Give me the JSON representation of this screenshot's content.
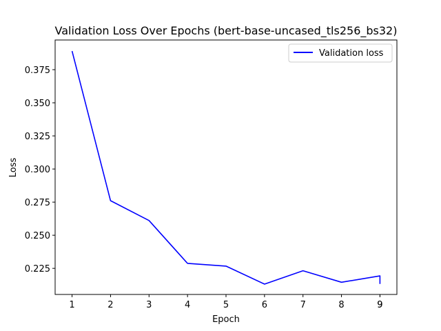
{
  "chart_data": {
    "type": "line",
    "title": "Validation Loss Over Epochs (bert-base-uncased_tls256_bs32)",
    "xlabel": "Epoch",
    "ylabel": "Loss",
    "x_ticks": [
      "1",
      "2",
      "3",
      "4",
      "5",
      "6",
      "7",
      "8",
      "9",
      "9"
    ],
    "y_ticks": [
      "0.225",
      "0.250",
      "0.275",
      "0.300",
      "0.325",
      "0.350",
      "0.375"
    ],
    "xlim": [
      0.56,
      9.44
    ],
    "ylim": [
      0.2053,
      0.3974
    ],
    "grid": false,
    "legend_position": "top-right",
    "series": [
      {
        "name": "Validation loss",
        "color": "#0000ff",
        "x": [
          1,
          2,
          3,
          4,
          5,
          6,
          7,
          8,
          9,
          9
        ],
        "y": [
          0.389,
          0.2761,
          0.2611,
          0.2288,
          0.2267,
          0.2131,
          0.2232,
          0.2145,
          0.2193,
          0.2132
        ]
      }
    ]
  }
}
